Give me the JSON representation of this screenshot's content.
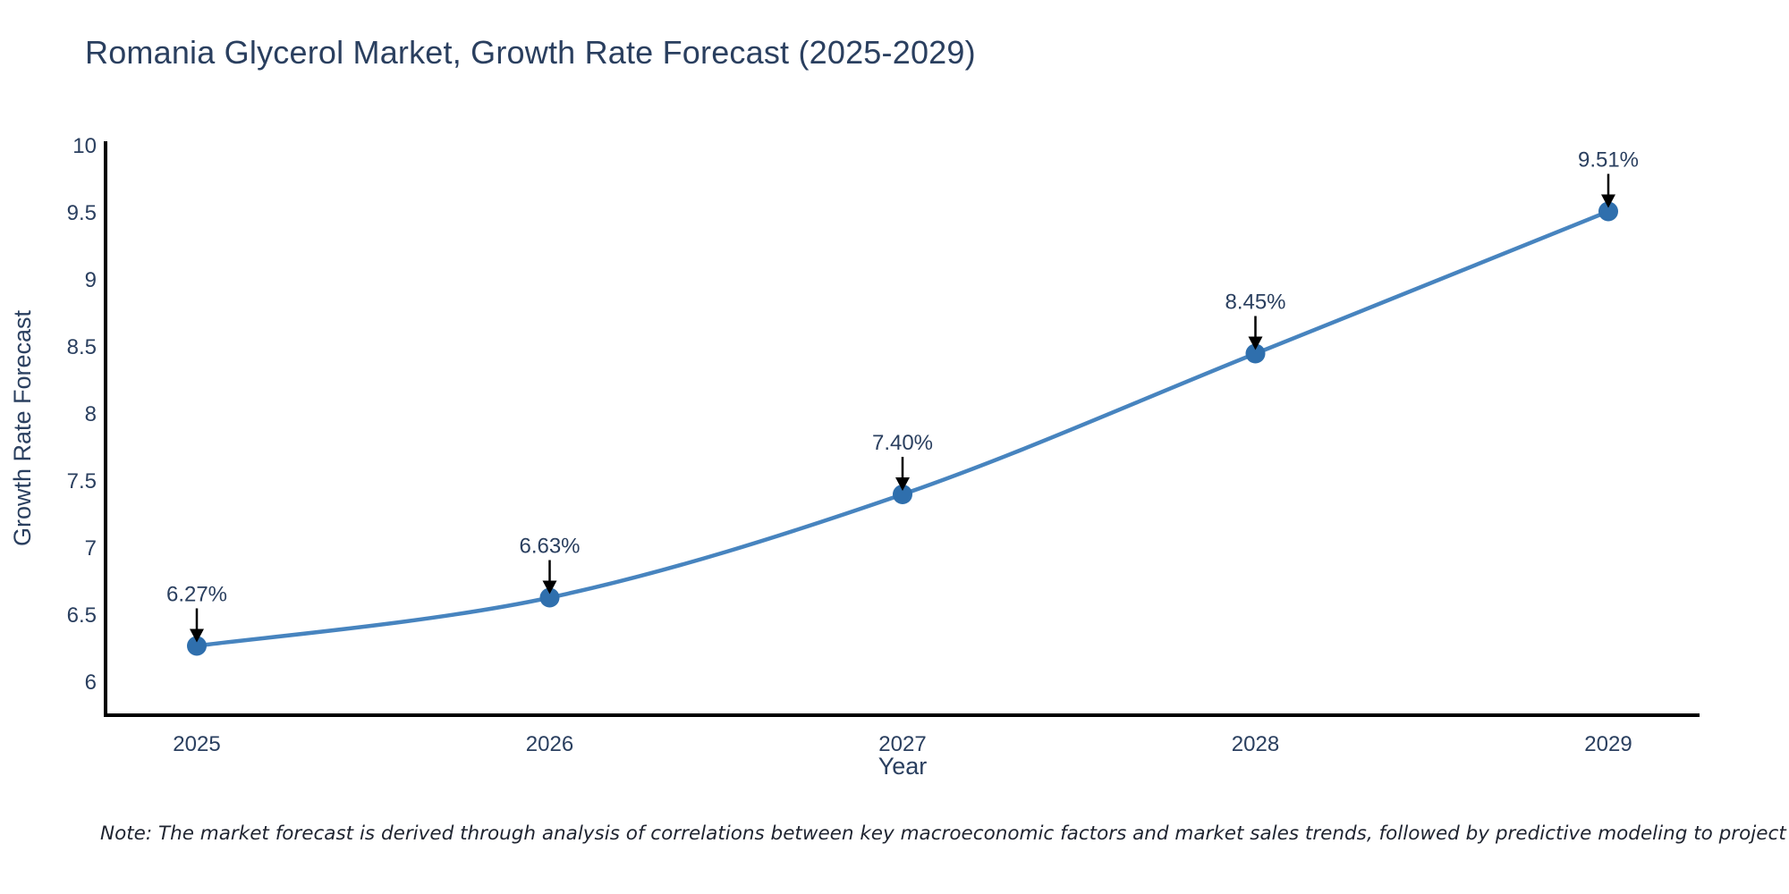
{
  "title": "Romania Glycerol Market, Growth Rate Forecast (2025-2029)",
  "note": "Note: The market forecast is derived through analysis of correlations between key macroeconomic factors and market sales trends, followed by predictive modeling to project future sales",
  "colors": {
    "line": "#4784bf",
    "marker": "#2f6fad",
    "axis": "#000000",
    "text": "#2a3f5f",
    "annotation_text": "#2a3f5f",
    "arrow": "#000000",
    "note_text": "#1f2430",
    "background": "#ffffff"
  },
  "chart_data": {
    "type": "line",
    "title": "Romania Glycerol Market, Growth Rate Forecast (2025-2029)",
    "x": [
      2025,
      2026,
      2027,
      2028,
      2029
    ],
    "x_tick_labels": [
      "2025",
      "2026",
      "2027",
      "2028",
      "2029"
    ],
    "series": [
      {
        "name": "Growth Rate Forecast",
        "values": [
          6.27,
          6.63,
          7.4,
          8.45,
          9.51
        ],
        "point_labels": [
          "6.27%",
          "6.63%",
          "7.40%",
          "8.45%",
          "9.51%"
        ]
      }
    ],
    "xlabel": "Year",
    "ylabel": "Growth Rate Forecast",
    "yticks": [
      6,
      6.5,
      7,
      7.5,
      8,
      8.5,
      9,
      9.5,
      10
    ],
    "ytick_labels": [
      "6",
      "6.5",
      "7",
      "7.5",
      "8",
      "8.5",
      "9",
      "9.5",
      "10"
    ],
    "ylim": [
      5.75,
      10.05
    ],
    "grid": false,
    "legend_position": "none",
    "line_shape": "spline",
    "annotations": "value labels with downward arrows above each point"
  }
}
